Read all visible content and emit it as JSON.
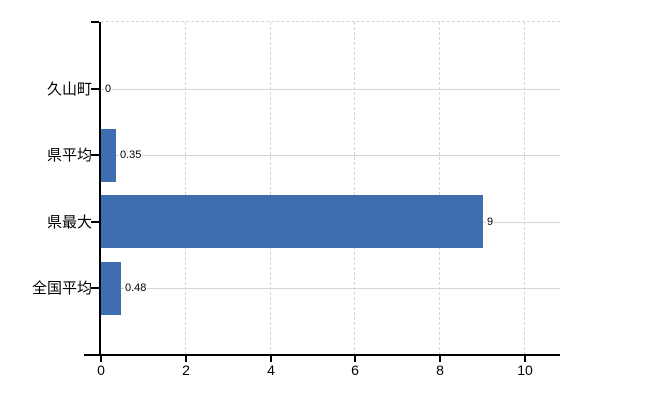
{
  "chart_data": {
    "type": "bar",
    "orientation": "horizontal",
    "title": "",
    "xlabel": "",
    "ylabel": "",
    "categories": [
      "久山町",
      "県平均",
      "県最大",
      "全国平均"
    ],
    "values": [
      0,
      0.35,
      9,
      0.48
    ],
    "value_labels": [
      "0",
      "0.35",
      "9",
      "0.48"
    ],
    "xlim": [
      0,
      10
    ],
    "x_ticks": [
      0,
      2,
      4,
      6,
      8,
      10
    ],
    "x_tick_labels": [
      "0",
      "2",
      "4",
      "6",
      "8",
      "10"
    ],
    "legend": "none",
    "grid": {
      "horizontal_category_lines": "solid",
      "vertical_value_lines": "dashed",
      "plot_top_border": "dashed"
    },
    "colors": {
      "bar": "#3e6eaf",
      "grid": "#d4d7d1",
      "axis": "#000000",
      "text": "#000000",
      "background": "#ffffff"
    }
  }
}
